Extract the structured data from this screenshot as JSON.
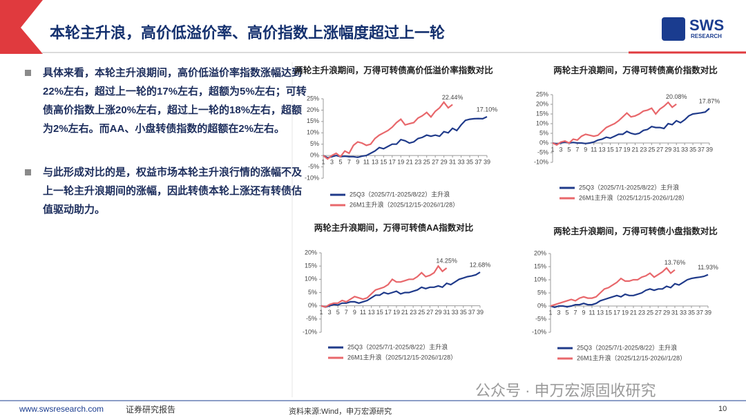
{
  "header": {
    "title": "本轮主升浪，高价低溢价率、高价指数上涨幅度超过上一轮",
    "logo": "SWS",
    "logo_sub": "RESEARCH"
  },
  "bullets": [
    "具体来看，本轮主升浪期间，高价低溢价率指数涨幅达到22%左右，超过上一轮的17%左右，超额为5%左右；可转债高价指数上涨20%左右，超过上一轮的18%左右，超额为2%左右。而AA、小盘转债指数的超额在2%左右。",
    "与此形成对比的是，权益市场本轮主升浪行情的涨幅不及上一轮主升浪期间的涨幅，因此转债本轮上涨还有转债估值驱动助力。"
  ],
  "footer": {
    "website": "www.swsresearch.com",
    "label": "证券研究报告",
    "source": "资料来源:Wind，申万宏源研究",
    "page": "10",
    "watermark": "公众号 · 申万宏源固收研究"
  },
  "chart_data": [
    {
      "type": "line",
      "title": "两轮主升浪期间，万得可转债高价低溢价率指数对比",
      "x": [
        1,
        2,
        3,
        4,
        5,
        6,
        7,
        8,
        9,
        10,
        11,
        12,
        13,
        14,
        15,
        16,
        17,
        18,
        19,
        20,
        21,
        22,
        23,
        24,
        25,
        26,
        27,
        28,
        29,
        30,
        31,
        32,
        33,
        34,
        35,
        36,
        37,
        38,
        39
      ],
      "xticks": [
        1,
        3,
        5,
        7,
        9,
        11,
        13,
        15,
        17,
        19,
        21,
        23,
        25,
        27,
        29,
        31,
        33,
        35,
        37,
        39
      ],
      "xlim": [
        1,
        39
      ],
      "ylim": [
        -10,
        25
      ],
      "yticks": [
        {
          "value": -10,
          "label": "-10%"
        },
        {
          "value": -5,
          "label": "-5%"
        },
        {
          "value": 0,
          "label": "0%"
        },
        {
          "value": 5,
          "label": "5%"
        },
        {
          "value": 10,
          "label": "10%"
        },
        {
          "value": 15,
          "label": "15%"
        },
        {
          "value": 20,
          "label": "20%"
        },
        {
          "value": 25,
          "label": "25%"
        }
      ],
      "series": [
        {
          "name": "25Q3（2025/7/1-2025/8/22）主升浪",
          "color": "#1f3a8a",
          "values": [
            0,
            -1,
            -0.5,
            0,
            -0.5,
            -0.3,
            -0.5,
            -0.5,
            -0.8,
            -0.3,
            0,
            1,
            2,
            3.5,
            3,
            4,
            5,
            5,
            7,
            6.5,
            5.5,
            6,
            7.5,
            8,
            9,
            8.5,
            9,
            8.5,
            10.5,
            10,
            12,
            11,
            13.5,
            15.5,
            16,
            16.2,
            16.3,
            16.2,
            17.1
          ],
          "value_labels": [
            null,
            null,
            null,
            null,
            null,
            null,
            null,
            null,
            null,
            null,
            null,
            null,
            null,
            null,
            null,
            null,
            null,
            null,
            null,
            null,
            null,
            null,
            null,
            null,
            null,
            null,
            null,
            null,
            null,
            null,
            null,
            null,
            null,
            null,
            null,
            null,
            null,
            null,
            "17.10%"
          ]
        },
        {
          "name": "26M1主升浪（2025/12/15-2026//1/28）",
          "color": "#e8676b",
          "values": [
            0,
            -1.5,
            0,
            1,
            -0.5,
            2,
            1,
            4.5,
            6,
            5.5,
            4.5,
            5,
            7.5,
            9,
            10,
            11,
            12.5,
            14.5,
            16,
            13.5,
            14,
            14.5,
            16.5,
            17.5,
            19,
            17,
            19.5,
            21,
            23.5,
            21,
            22.44,
            null,
            null,
            null,
            null,
            null,
            null,
            null,
            null
          ],
          "value_labels": [
            null,
            null,
            null,
            null,
            null,
            null,
            null,
            null,
            null,
            null,
            null,
            null,
            null,
            null,
            null,
            null,
            null,
            null,
            null,
            null,
            null,
            null,
            null,
            null,
            null,
            null,
            null,
            null,
            null,
            null,
            "22.44%",
            null,
            null,
            null,
            null,
            null,
            null,
            null,
            null
          ]
        }
      ]
    },
    {
      "type": "line",
      "title": "两轮主升浪期间，万得可转债高价指数对比",
      "x": [
        1,
        2,
        3,
        4,
        5,
        6,
        7,
        8,
        9,
        10,
        11,
        12,
        13,
        14,
        15,
        16,
        17,
        18,
        19,
        20,
        21,
        22,
        23,
        24,
        25,
        26,
        27,
        28,
        29,
        30,
        31,
        32,
        33,
        34,
        35,
        36,
        37,
        38,
        39
      ],
      "xticks": [
        1,
        3,
        5,
        7,
        9,
        11,
        13,
        15,
        17,
        19,
        21,
        23,
        25,
        27,
        29,
        31,
        33,
        35,
        37,
        39
      ],
      "xlim": [
        1,
        39
      ],
      "ylim": [
        -10,
        25
      ],
      "yticks": [
        {
          "value": -10,
          "label": "-10%"
        },
        {
          "value": -5,
          "label": "-5%"
        },
        {
          "value": 0,
          "label": "0%"
        },
        {
          "value": 5,
          "label": "5%"
        },
        {
          "value": 10,
          "label": "10%"
        },
        {
          "value": 15,
          "label": "15%"
        },
        {
          "value": 20,
          "label": "20%"
        },
        {
          "value": 25,
          "label": "25%"
        }
      ],
      "series": [
        {
          "name": "25Q3（2025/7/1-2025/8/22）主升浪",
          "color": "#1f3a8a",
          "values": [
            0,
            -0.5,
            0,
            0.5,
            0,
            0.3,
            0,
            0,
            -0.3,
            0,
            0.5,
            1.5,
            2,
            3,
            2.5,
            3.5,
            4.5,
            4.5,
            6,
            5,
            4.5,
            5,
            6.5,
            7,
            8.5,
            8,
            8,
            7.5,
            10,
            9.5,
            11.5,
            10.5,
            12,
            14,
            15,
            15.3,
            15.6,
            16,
            17.87
          ],
          "value_labels": [
            null,
            null,
            null,
            null,
            null,
            null,
            null,
            null,
            null,
            null,
            null,
            null,
            null,
            null,
            null,
            null,
            null,
            null,
            null,
            null,
            null,
            null,
            null,
            null,
            null,
            null,
            null,
            null,
            null,
            null,
            null,
            null,
            null,
            null,
            null,
            null,
            null,
            null,
            "17.87%"
          ]
        },
        {
          "name": "26M1主升浪（2025/12/15-2026//1/28）",
          "color": "#e8676b",
          "values": [
            0,
            -1,
            0.5,
            1,
            0,
            2,
            1.5,
            3.5,
            4.5,
            4,
            3.5,
            4,
            6,
            8,
            9,
            10,
            11.5,
            13.5,
            15.5,
            13.5,
            14,
            15,
            16.5,
            17,
            18,
            15,
            17.5,
            19,
            21,
            18.5,
            20.08,
            null,
            null,
            null,
            null,
            null,
            null,
            null,
            null
          ],
          "value_labels": [
            null,
            null,
            null,
            null,
            null,
            null,
            null,
            null,
            null,
            null,
            null,
            null,
            null,
            null,
            null,
            null,
            null,
            null,
            null,
            null,
            null,
            null,
            null,
            null,
            null,
            null,
            null,
            null,
            null,
            null,
            "20.08%",
            null,
            null,
            null,
            null,
            null,
            null,
            null,
            null
          ]
        }
      ]
    },
    {
      "type": "line",
      "title": "两轮主升浪期间，万得可转债AA指数对比",
      "x": [
        1,
        2,
        3,
        4,
        5,
        6,
        7,
        8,
        9,
        10,
        11,
        12,
        13,
        14,
        15,
        16,
        17,
        18,
        19,
        20,
        21,
        22,
        23,
        24,
        25,
        26,
        27,
        28,
        29,
        30,
        31,
        32,
        33,
        34,
        35,
        36,
        37,
        38,
        39
      ],
      "xticks": [
        1,
        3,
        5,
        7,
        9,
        11,
        13,
        15,
        17,
        19,
        21,
        23,
        25,
        27,
        29,
        31,
        33,
        35,
        37,
        39
      ],
      "xlim": [
        1,
        39
      ],
      "ylim": [
        -10,
        20
      ],
      "yticks": [
        {
          "value": -10,
          "label": "-10%"
        },
        {
          "value": -5,
          "label": "-5%"
        },
        {
          "value": 0,
          "label": "0%"
        },
        {
          "value": 5,
          "label": "5%"
        },
        {
          "value": 10,
          "label": "10%"
        },
        {
          "value": 15,
          "label": "15%"
        },
        {
          "value": 20,
          "label": "20%"
        }
      ],
      "series": [
        {
          "name": "25Q3（2025/7/1-2025/8/22）主升浪",
          "color": "#1f3a8a",
          "values": [
            0,
            -0.5,
            0,
            0.5,
            0.3,
            1,
            1,
            1.5,
            1.5,
            1,
            1.5,
            2,
            3,
            4,
            4,
            5,
            4.5,
            5,
            5.5,
            4.5,
            5,
            5,
            5.5,
            6,
            7,
            6.5,
            7,
            7,
            7.5,
            7,
            8.5,
            8,
            9,
            10,
            10.5,
            11,
            11.3,
            11.7,
            12.68
          ],
          "value_labels": [
            null,
            null,
            null,
            null,
            null,
            null,
            null,
            null,
            null,
            null,
            null,
            null,
            null,
            null,
            null,
            null,
            null,
            null,
            null,
            null,
            null,
            null,
            null,
            null,
            null,
            null,
            null,
            null,
            null,
            null,
            null,
            null,
            null,
            null,
            null,
            null,
            null,
            null,
            "12.68%"
          ]
        },
        {
          "name": "26M1主升浪（2025/12/15-2026//1/28）",
          "color": "#e8676b",
          "values": [
            0,
            -0.5,
            0.5,
            1,
            1,
            2,
            1.5,
            2.5,
            3.5,
            3,
            2.5,
            3,
            4.5,
            6,
            6.5,
            7,
            8,
            10,
            9,
            9,
            9.5,
            10,
            10,
            11,
            12.5,
            11,
            11.5,
            12.5,
            15,
            13,
            14.25,
            null,
            null,
            null,
            null,
            null,
            null,
            null,
            null
          ],
          "value_labels": [
            null,
            null,
            null,
            null,
            null,
            null,
            null,
            null,
            null,
            null,
            null,
            null,
            null,
            null,
            null,
            null,
            null,
            null,
            null,
            null,
            null,
            null,
            null,
            null,
            null,
            null,
            null,
            null,
            null,
            null,
            "14.25%",
            null,
            null,
            null,
            null,
            null,
            null,
            null,
            null
          ]
        }
      ]
    },
    {
      "type": "line",
      "title": "两轮主升浪期间，万得可转债小盘指数对比",
      "x": [
        1,
        2,
        3,
        4,
        5,
        6,
        7,
        8,
        9,
        10,
        11,
        12,
        13,
        14,
        15,
        16,
        17,
        18,
        19,
        20,
        21,
        22,
        23,
        24,
        25,
        26,
        27,
        28,
        29,
        30,
        31,
        32,
        33,
        34,
        35,
        36,
        37,
        38,
        39
      ],
      "xticks": [
        1,
        3,
        5,
        7,
        9,
        11,
        13,
        15,
        17,
        19,
        21,
        23,
        25,
        27,
        29,
        31,
        33,
        35,
        37,
        39
      ],
      "xlim": [
        1,
        39
      ],
      "ylim": [
        -10,
        20
      ],
      "yticks": [
        {
          "value": -10,
          "label": "-10%"
        },
        {
          "value": -5,
          "label": "-5%"
        },
        {
          "value": 0,
          "label": "0%"
        },
        {
          "value": 5,
          "label": "5%"
        },
        {
          "value": 10,
          "label": "10%"
        },
        {
          "value": 15,
          "label": "15%"
        },
        {
          "value": 20,
          "label": "20%"
        }
      ],
      "series": [
        {
          "name": "25Q3（2025/7/1-2025/8/22）主升浪",
          "color": "#1f3a8a",
          "values": [
            0,
            -0.5,
            0,
            0,
            -0.3,
            0,
            0.5,
            0.5,
            1,
            0.5,
            0.5,
            1,
            2,
            2.5,
            3,
            3.5,
            4,
            3.5,
            4.5,
            4,
            4,
            4.5,
            5,
            6,
            6.5,
            6,
            6.5,
            6.5,
            7.5,
            7,
            8.5,
            8,
            9,
            10,
            10.5,
            10.8,
            11,
            11.3,
            11.93
          ],
          "value_labels": [
            null,
            null,
            null,
            null,
            null,
            null,
            null,
            null,
            null,
            null,
            null,
            null,
            null,
            null,
            null,
            null,
            null,
            null,
            null,
            null,
            null,
            null,
            null,
            null,
            null,
            null,
            null,
            null,
            null,
            null,
            null,
            null,
            null,
            null,
            null,
            null,
            null,
            null,
            "11.93%"
          ]
        },
        {
          "name": "26M1主升浪（2025/12/15-2026//1/28）",
          "color": "#e8676b",
          "values": [
            0,
            0.5,
            1,
            1.5,
            2,
            2.5,
            2,
            3,
            3.5,
            3,
            3,
            3.5,
            5,
            6.5,
            7,
            8,
            9,
            10.5,
            9.5,
            9.5,
            10,
            10,
            11,
            11.5,
            12.5,
            11,
            12,
            13,
            14.5,
            12.5,
            13.76,
            null,
            null,
            null,
            null,
            null,
            null,
            null,
            null
          ],
          "value_labels": [
            null,
            null,
            null,
            null,
            null,
            null,
            null,
            null,
            null,
            null,
            null,
            null,
            null,
            null,
            null,
            null,
            null,
            null,
            null,
            null,
            null,
            null,
            null,
            null,
            null,
            null,
            null,
            null,
            null,
            null,
            "13.76%",
            null,
            null,
            null,
            null,
            null,
            null,
            null,
            null
          ]
        }
      ]
    }
  ]
}
